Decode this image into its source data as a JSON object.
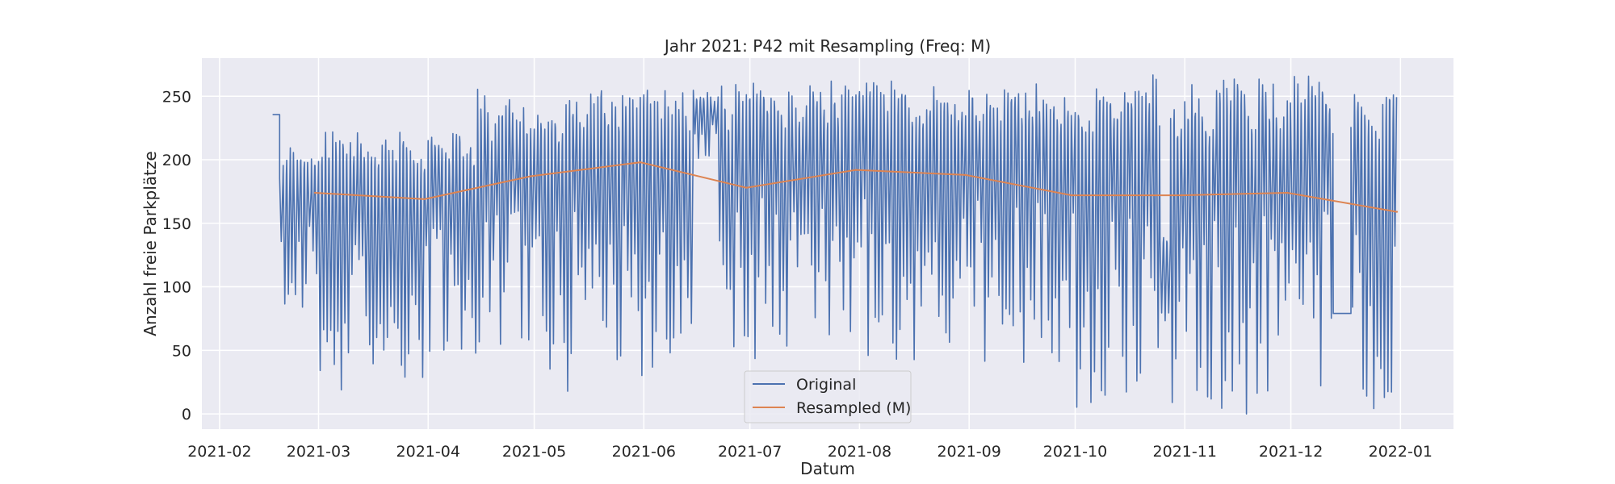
{
  "chart_data": {
    "type": "line",
    "title": "Jahr 2021: P42 mit Resampling (Freq: M)",
    "xlabel": "Datum",
    "ylabel": "Anzahl freie Parkplätze",
    "x_range": [
      "2021-01-27",
      "2022-01-16"
    ],
    "ylim": [
      -12,
      280
    ],
    "x_ticks": [
      "2021-02",
      "2021-03",
      "2021-04",
      "2021-05",
      "2021-06",
      "2021-07",
      "2021-08",
      "2021-09",
      "2021-10",
      "2021-11",
      "2021-12",
      "2022-01"
    ],
    "y_ticks": [
      0,
      50,
      100,
      150,
      200,
      250
    ],
    "grid": true,
    "legend_position": "lower center",
    "colors": {
      "background": "#eaeaf2",
      "grid": "#ffffff",
      "original": "#4c72b0",
      "resampled": "#dd8452"
    },
    "series": [
      {
        "name": "Original",
        "data_range": [
          "2021-02-16",
          "2021-12-31"
        ],
        "approximate_envelope": [
          {
            "start": "2021-02-16",
            "end": "2021-02-18",
            "min": 228,
            "max": 243
          },
          {
            "start": "2021-02-18",
            "end": "2021-03-01",
            "min": 65,
            "max": 212
          },
          {
            "start": "2021-03-01",
            "end": "2021-04-01",
            "min": 18,
            "max": 222
          },
          {
            "start": "2021-04-01",
            "end": "2021-04-15",
            "min": 35,
            "max": 222
          },
          {
            "start": "2021-04-15",
            "end": "2021-06-01",
            "min": 16,
            "max": 257
          },
          {
            "start": "2021-06-01",
            "end": "2021-06-15",
            "min": 30,
            "max": 256
          },
          {
            "start": "2021-06-15",
            "end": "2021-06-22",
            "min": 185,
            "max": 256
          },
          {
            "start": "2021-06-22",
            "end": "2021-08-01",
            "min": 40,
            "max": 262
          },
          {
            "start": "2021-08-01",
            "end": "2021-10-01",
            "min": 40,
            "max": 262
          },
          {
            "start": "2021-10-01",
            "end": "2021-10-25",
            "min": 0,
            "max": 268
          },
          {
            "start": "2021-10-25",
            "end": "2021-10-28",
            "min": 70,
            "max": 145
          },
          {
            "start": "2021-10-28",
            "end": "2021-12-13",
            "min": 0,
            "max": 266
          },
          {
            "start": "2021-12-13",
            "end": "2021-12-18",
            "min": 78,
            "max": 80
          },
          {
            "start": "2021-12-18",
            "end": "2021-12-31",
            "min": 0,
            "max": 252
          }
        ]
      },
      {
        "name": "Resampled (M)",
        "x": [
          "2021-02-28",
          "2021-03-31",
          "2021-04-30",
          "2021-05-31",
          "2021-06-30",
          "2021-07-31",
          "2021-08-31",
          "2021-09-30",
          "2021-10-31",
          "2021-11-30",
          "2021-12-31"
        ],
        "values": [
          174,
          169,
          187,
          198,
          178,
          192,
          188,
          172,
          172,
          174,
          159
        ]
      }
    ]
  }
}
